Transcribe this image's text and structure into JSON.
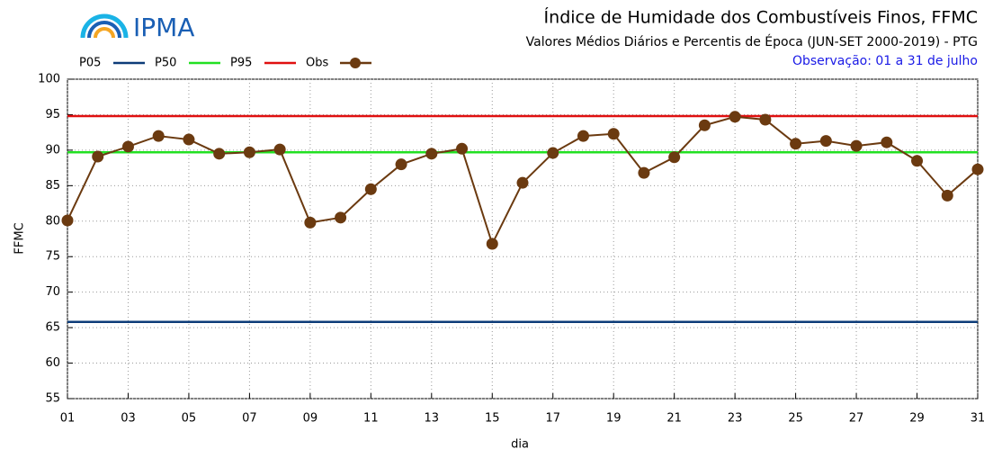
{
  "chart_data": {
    "type": "line",
    "brand": "IPMA",
    "title": "Índice de Humidade dos Combustíveis Finos, FFMC",
    "subtitle": "Valores Médios Diários e Percentis de Época (JUN-SET 2000-2019) - PTG",
    "annotation": "Observação: 01 a 31 de julho",
    "y_label": "FFMC",
    "x_label": "dia",
    "xlim": [
      1,
      31
    ],
    "xticks": [
      {
        "value": 1,
        "label": "01"
      },
      {
        "value": 3,
        "label": "03"
      },
      {
        "value": 5,
        "label": "05"
      },
      {
        "value": 7,
        "label": "07"
      },
      {
        "value": 9,
        "label": "09"
      },
      11,
      13,
      15,
      17,
      19,
      21,
      23,
      25,
      27,
      29,
      31
    ],
    "ylim": [
      55,
      100
    ],
    "yticks": [
      55,
      60,
      65,
      70,
      75,
      80,
      85,
      90,
      95,
      100
    ],
    "grid": true,
    "reference_lines": [
      {
        "name": "P05",
        "color": "#0d3c78",
        "value": 65.8
      },
      {
        "name": "P50",
        "color": "#22e022",
        "value": 89.7
      },
      {
        "name": "P95",
        "color": "#e01010",
        "value": 94.8
      }
    ],
    "series": [
      {
        "name": "Obs",
        "color": "#6b3a10",
        "x": [
          1,
          2,
          3,
          4,
          5,
          6,
          7,
          8,
          9,
          10,
          11,
          12,
          13,
          14,
          15,
          16,
          17,
          18,
          19,
          20,
          21,
          22,
          23,
          24,
          25,
          26,
          27,
          28,
          29,
          30,
          31
        ],
        "values": [
          80.1,
          89.1,
          90.5,
          92.0,
          91.5,
          89.5,
          89.7,
          90.1,
          79.8,
          80.5,
          84.5,
          88.0,
          89.5,
          90.2,
          76.8,
          85.4,
          89.6,
          92.0,
          92.3,
          86.8,
          89.0,
          93.5,
          94.7,
          94.3,
          90.9,
          91.3,
          90.6,
          91.1,
          88.5,
          83.6,
          87.3
        ]
      }
    ]
  }
}
